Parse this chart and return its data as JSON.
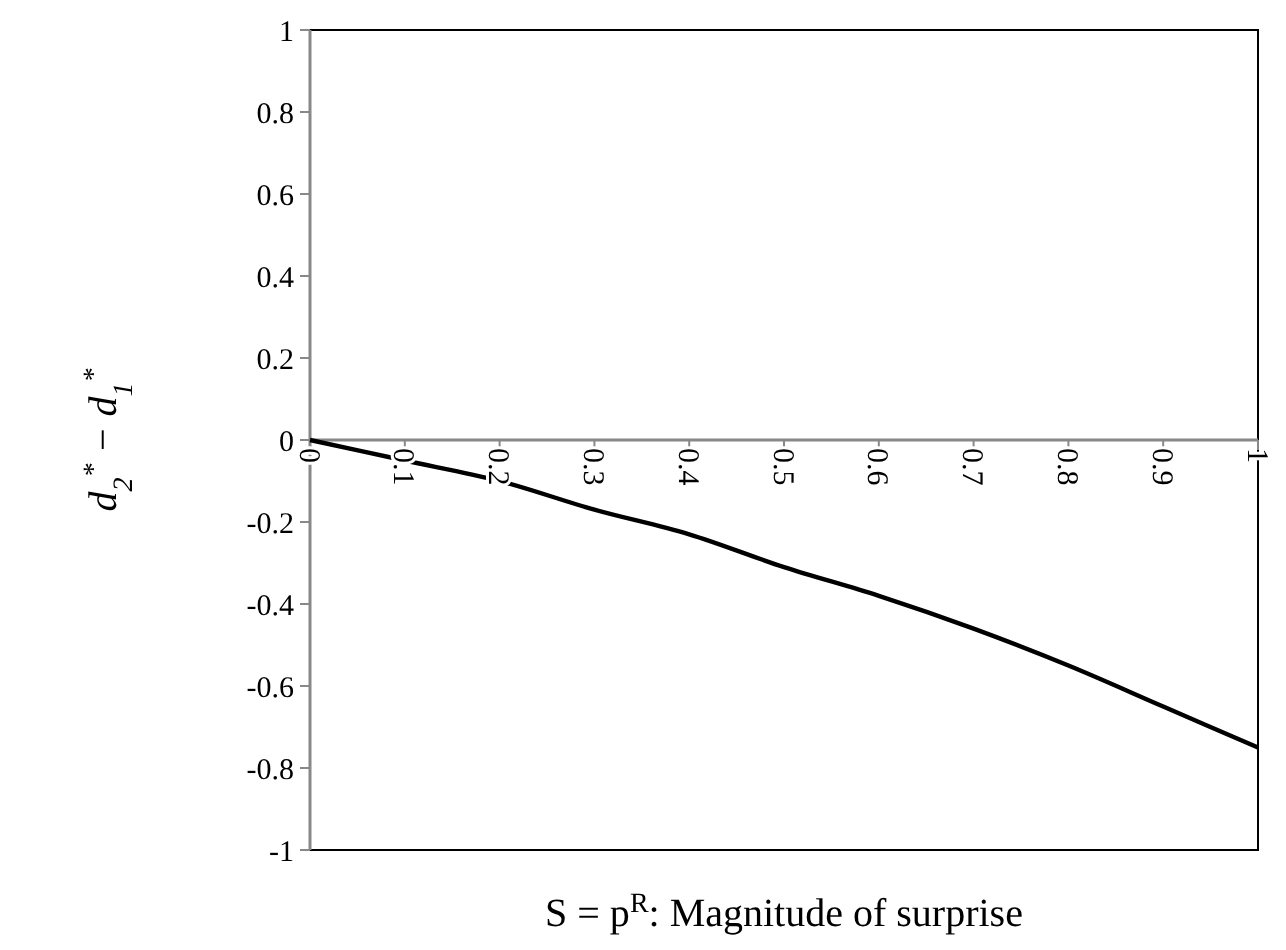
{
  "chart_data": {
    "type": "line",
    "xlabel": "S = p$^{R}$: Magnitude of surprise",
    "ylabel": "d$_{2}$$^{*}$ − d$_{1}$$^{*}$",
    "x": [
      0,
      0.1,
      0.2,
      0.3,
      0.4,
      0.5,
      0.6,
      0.7,
      0.8,
      0.9,
      1
    ],
    "series": [
      {
        "color": "#000000",
        "values": [
          0,
          -0.05,
          -0.1,
          -0.17,
          -0.23,
          -0.31,
          -0.38,
          -0.46,
          -0.55,
          -0.65,
          -0.75
        ]
      }
    ],
    "xlim": [
      0,
      1
    ],
    "xticks": [
      0,
      0.1,
      0.2,
      0.3,
      0.4,
      0.5,
      0.6,
      0.7,
      0.8,
      0.9,
      1
    ],
    "ylim": [
      -1,
      1
    ],
    "yticks": [
      -1,
      -0.8,
      -0.6,
      -0.4,
      -0.2,
      0,
      0.2,
      0.4,
      0.6,
      0.8,
      1
    ],
    "grid": false,
    "marker": "none",
    "line_style": "solid"
  }
}
